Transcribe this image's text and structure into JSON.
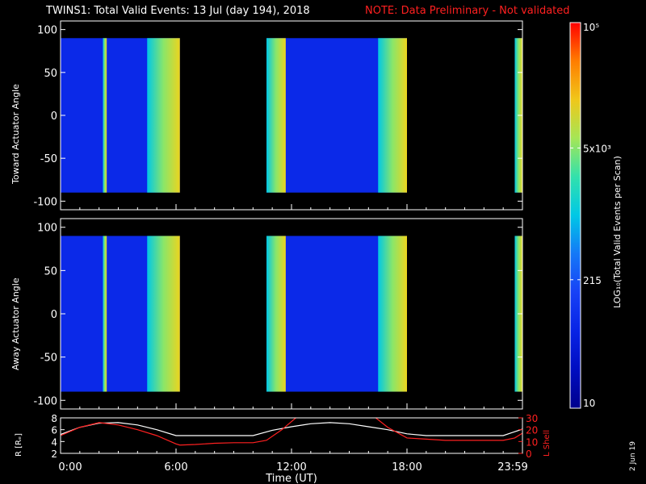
{
  "title": "TWINS1: Total Valid Events: 13 Jul (day 194), 2018",
  "note": "NOTE: Data Preliminary - Not validated",
  "stamp": "2 Jun 19",
  "colors": {
    "background": "#000000",
    "axes": "#ffffff",
    "note": "#ff2020",
    "lshell": "#ff2020",
    "radius": "#ffffff"
  },
  "chart_data": [
    {
      "type": "heatmap",
      "ylabel": "Toward Actuator Angle",
      "ylim": [
        -110,
        110
      ],
      "yticks": [
        100,
        50,
        0,
        -50,
        -100
      ],
      "xlim_hours": [
        0,
        24
      ],
      "data_angle_range": [
        -90,
        90
      ],
      "data_segments_hours": [
        [
          0,
          6.2
        ],
        [
          10.7,
          18.0
        ],
        [
          23.6,
          24.0
        ]
      ],
      "bright_bands_hours": [
        [
          2.2,
          2.4
        ],
        [
          4.5,
          6.2
        ],
        [
          10.7,
          11.7
        ],
        [
          16.5,
          18.0
        ],
        [
          23.6,
          24.0
        ]
      ]
    },
    {
      "type": "heatmap",
      "ylabel": "Away Actuator Angle",
      "ylim": [
        -110,
        110
      ],
      "yticks": [
        100,
        50,
        0,
        -50,
        -100
      ],
      "xlim_hours": [
        0,
        24
      ],
      "data_angle_range": [
        -90,
        90
      ],
      "data_segments_hours": [
        [
          0,
          6.2
        ],
        [
          10.7,
          18.0
        ],
        [
          23.6,
          24.0
        ]
      ],
      "bright_bands_hours": [
        [
          2.2,
          2.4
        ],
        [
          4.5,
          6.2
        ],
        [
          10.7,
          11.7
        ],
        [
          16.5,
          18.0
        ],
        [
          23.6,
          24.0
        ]
      ]
    },
    {
      "type": "line",
      "xlabel": "Time (UT)",
      "xticks": [
        "0:00",
        "6:00",
        "12:00",
        "18:00",
        "23:59"
      ],
      "xtick_hours": [
        0,
        6,
        12,
        18,
        24
      ],
      "ylabel_left": "R [Rₑ]",
      "ylim_left": [
        2,
        8
      ],
      "yticks_left": [
        8,
        6,
        4,
        2
      ],
      "ylabel_right": "L Shell",
      "ylim_right": [
        0,
        30
      ],
      "yticks_right": [
        30,
        20,
        10,
        0
      ],
      "series": [
        {
          "axis": "left",
          "color": "#ffffff",
          "x": [
            0,
            1,
            2,
            3,
            4,
            5,
            6,
            7,
            8,
            9,
            10,
            11,
            12,
            13,
            14,
            15,
            16,
            17,
            18,
            19,
            20,
            21,
            22,
            23,
            24
          ],
          "y": [
            5.2,
            6.4,
            7.1,
            7.2,
            6.8,
            6.0,
            5.0,
            5.0,
            5.0,
            5.0,
            5.0,
            5.9,
            6.5,
            7.0,
            7.2,
            7.0,
            6.5,
            6.0,
            5.3,
            5.0,
            5.0,
            5.0,
            5.0,
            5.0,
            6.1
          ]
        },
        {
          "axis": "right",
          "color": "#ff2020",
          "x": [
            0,
            1,
            2,
            3,
            4,
            5,
            6,
            6.2,
            7,
            8,
            9,
            10,
            10.7,
            11.5,
            12.3,
            16.3,
            17,
            18,
            19,
            20,
            21,
            22,
            23,
            23.6,
            24
          ],
          "y": [
            15,
            22,
            26,
            24,
            20,
            15,
            8,
            7,
            7.5,
            8.5,
            9,
            9,
            11,
            20,
            31,
            31,
            22,
            13,
            12,
            11,
            11,
            11,
            11,
            13,
            17
          ]
        }
      ]
    }
  ],
  "colorbar": {
    "label": "LOG₁₀(Total Valid Events per Scan)",
    "ticks": [
      "10⁵",
      "5x10³",
      "215",
      "10"
    ],
    "tick_values": [
      100000,
      5000,
      215,
      10
    ],
    "range": [
      10,
      100000
    ],
    "scale": "log"
  }
}
